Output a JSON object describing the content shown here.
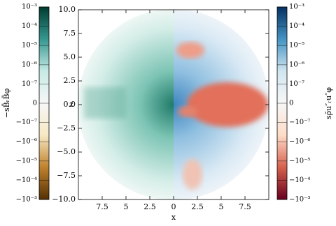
{
  "chart_data": {
    "type": "heatmap",
    "xlabel": "x",
    "ylabel": "z",
    "xlim": [
      -10,
      10
    ],
    "xticks": [
      {
        "value": -7.5,
        "label": "7.5"
      },
      {
        "value": -5,
        "label": "5"
      },
      {
        "value": -2.5,
        "label": "2.5"
      },
      0,
      2.5,
      5,
      7.5
    ],
    "ylim": [
      -10,
      10
    ],
    "yticks": [
      {
        "value": 10,
        "label": "10.0"
      },
      7.5,
      {
        "value": 5,
        "label": "5.0"
      },
      2.5,
      {
        "value": 0,
        "label": "0.0"
      },
      {
        "value": -2.5,
        "label": "−2.5"
      },
      {
        "value": -5,
        "label": "−5.0"
      },
      {
        "value": -7.5,
        "label": "−7.5"
      },
      {
        "value": -10,
        "label": "−10.0"
      }
    ],
    "colorbars": [
      {
        "label": "−sB̄ᵣB̄φ",
        "scale": "symlog",
        "linthresh": 1e-07,
        "lim": [
          -0.001,
          0.001
        ],
        "colors": [
          "#003c30",
          "#35978f",
          "#c7eae5",
          "#f7f7f7",
          "#f6e8c3",
          "#bf812d",
          "#543005"
        ],
        "ticks": [
          {
            "value": 0.001,
            "label": "10⁻³"
          },
          {
            "value": 0.0001,
            "label": "10⁻⁴"
          },
          {
            "value": 1e-05,
            "label": "10⁻⁵"
          },
          {
            "value": 1e-06,
            "label": "10⁻⁶"
          },
          {
            "value": 1e-07,
            "label": "10⁻⁷"
          },
          0,
          {
            "value": -1e-07,
            "label": "−10⁻⁷"
          },
          {
            "value": -1e-06,
            "label": "−10⁻⁶"
          },
          {
            "value": -1e-05,
            "label": "−10⁻⁵"
          },
          {
            "value": -0.0001,
            "label": "−10⁻⁴"
          },
          {
            "value": -0.001,
            "label": "−10⁻³"
          }
        ]
      },
      {
        "label": "sρ̄u″ᵣu″φ",
        "scale": "symlog",
        "linthresh": 1e-07,
        "lim": [
          -0.001,
          0.001
        ],
        "colors": [
          "#053061",
          "#4393c3",
          "#d1e5f0",
          "#f7f7f7",
          "#fddbc7",
          "#d6604d",
          "#67001f"
        ],
        "ticks": [
          {
            "value": 0.001,
            "label": "10⁻³"
          },
          {
            "value": 0.0001,
            "label": "10⁻⁴"
          },
          {
            "value": 1e-05,
            "label": "10⁻⁵"
          },
          {
            "value": 1e-06,
            "label": "10⁻⁶"
          },
          {
            "value": 1e-07,
            "label": "10⁻⁷"
          },
          0,
          {
            "value": -1e-07,
            "label": "−10⁻⁷"
          },
          {
            "value": -1e-06,
            "label": "−10⁻⁶"
          },
          {
            "value": -1e-05,
            "label": "−10⁻⁵"
          },
          {
            "value": -0.0001,
            "label": "−10⁻⁴"
          },
          {
            "value": -0.001,
            "label": "−10⁻³"
          }
        ]
      }
    ]
  }
}
